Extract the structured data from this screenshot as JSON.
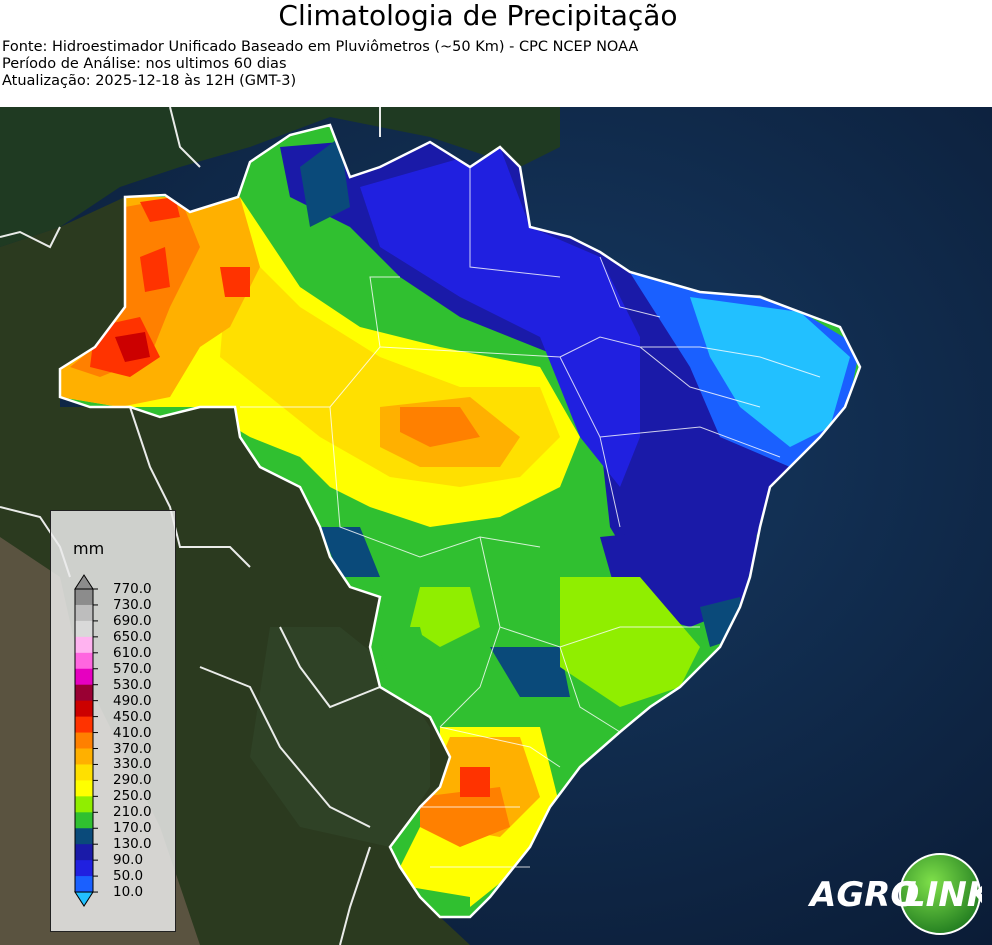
{
  "title": "Climatologia de Precipitação",
  "subtitles": [
    "Fonte: Hidroestimador Unificado Baseado em Pluviômetros (~50 Km) - CPC NCEP NOAA",
    "Período de Análise: nos ultimos 60 dias",
    "Atualização: 2025-12-18 às 12H (GMT-3)"
  ],
  "legend": {
    "unit": "mm",
    "levels": [
      "770.0",
      "730.0",
      "690.0",
      "650.0",
      "610.0",
      "570.0",
      "530.0",
      "490.0",
      "450.0",
      "410.0",
      "370.0",
      "330.0",
      "290.0",
      "250.0",
      "210.0",
      "170.0",
      "130.0",
      "90.0",
      "50.0",
      "10.0"
    ],
    "colors": [
      "#8c8c8c",
      "#bdbdbd",
      "#d9d9d9",
      "#ffb3f0",
      "#ff66e0",
      "#e600c0",
      "#990033",
      "#cc0000",
      "#ff3300",
      "#ff8000",
      "#ffb000",
      "#ffe000",
      "#ffff00",
      "#90ee00",
      "#30c030",
      "#0a4a7a",
      "#1a1aa8",
      "#2020e0",
      "#1a60ff",
      "#22c0ff"
    ]
  },
  "logo": {
    "part1": "AGRO",
    "part2": "LINK"
  }
}
